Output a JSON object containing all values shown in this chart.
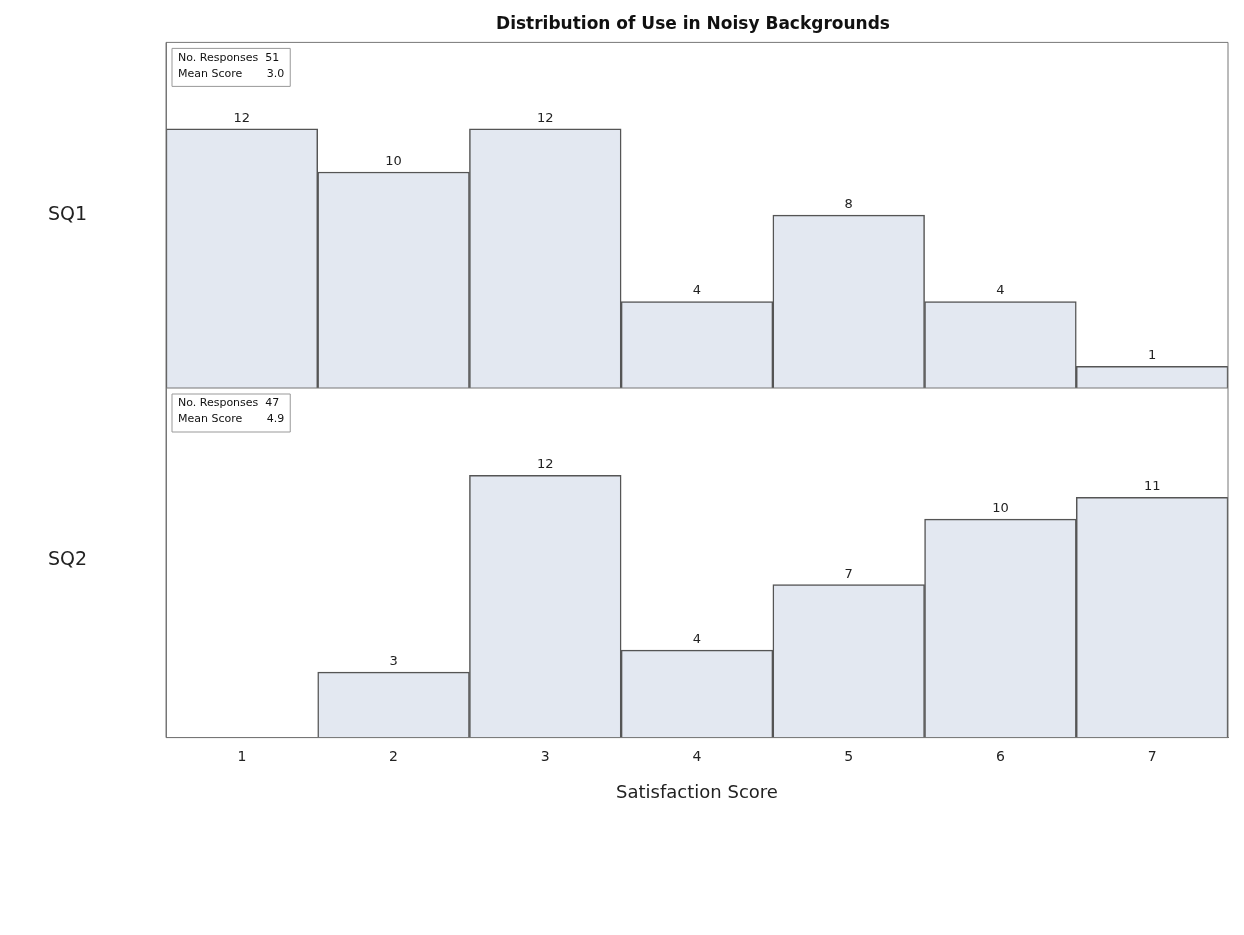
{
  "chart_data": [
    {
      "type": "bar",
      "title": "Distribution of Use in Noisy Backgrounds",
      "ylabel": "SQ1",
      "categories": [
        "1",
        "2",
        "3",
        "4",
        "5",
        "6",
        "7"
      ],
      "values": [
        12,
        10,
        12,
        4,
        8,
        4,
        1
      ],
      "color": "#e3e8f1",
      "data_labels": true,
      "tick_labels": false,
      "annotations": [
        "No. Responses  51",
        "Mean Score       3.0"
      ]
    },
    {
      "type": "bar",
      "ylabel": "SQ2",
      "xlabel": "Satisfaction Score",
      "categories": [
        "1",
        "2",
        "3",
        "4",
        "5",
        "6",
        "7"
      ],
      "values": [
        0,
        3,
        12,
        4,
        7,
        10,
        11
      ],
      "value_labels": [
        null,
        "3",
        "12",
        "4",
        "7",
        "10",
        "11"
      ],
      "color": "#e3e8f1",
      "tick_labels": "x",
      "annotations": [
        "No. Responses  47",
        "Mean Score       4.9"
      ]
    }
  ]
}
